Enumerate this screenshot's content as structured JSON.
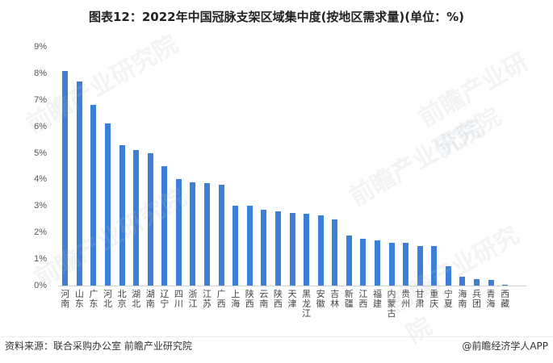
{
  "header": {
    "title": "图表12：2022年中国冠脉支架区域集中度(按地区需求量)(单位：%)"
  },
  "footer": {
    "source": "资料来源：联合采购办公室 前瞻产业研究院",
    "credit": "@前瞻经济学人APP"
  },
  "watermark": "前瞻产业研究院",
  "colors": {
    "bar": "#3b7fd6",
    "axis": "#d0d0d0"
  },
  "chart_data": {
    "type": "bar",
    "title": "图表12：2022年中国冠脉支架区域集中度(按地区需求量)(单位：%)",
    "xlabel": "",
    "ylabel": "",
    "ylim": [
      0,
      9
    ],
    "yticks": [
      "0%",
      "1%",
      "2%",
      "3%",
      "4%",
      "5%",
      "6%",
      "7%",
      "8%",
      "9%"
    ],
    "grid": false,
    "legend": null,
    "categories": [
      "河南",
      "山东",
      "广东",
      "河北",
      "北京",
      "湖北",
      "湖南",
      "辽宁",
      "四川",
      "浙江",
      "江苏",
      "广西",
      "上海",
      "陕西",
      "云南",
      "陕西",
      "天津",
      "黑龙江",
      "安徽",
      "吉林",
      "新疆",
      "江西",
      "福建",
      "内蒙古",
      "贵州",
      "甘肃",
      "重庆",
      "宁夏",
      "海南",
      "兵团",
      "青海",
      "西藏"
    ],
    "values": [
      8.1,
      7.7,
      6.8,
      6.1,
      5.3,
      5.1,
      5.0,
      4.5,
      4.0,
      3.9,
      3.85,
      3.8,
      3.0,
      3.0,
      2.85,
      2.8,
      2.75,
      2.7,
      2.65,
      2.5,
      1.9,
      1.75,
      1.7,
      1.6,
      1.6,
      1.5,
      1.5,
      0.72,
      0.33,
      0.24,
      0.21,
      0.03
    ]
  }
}
